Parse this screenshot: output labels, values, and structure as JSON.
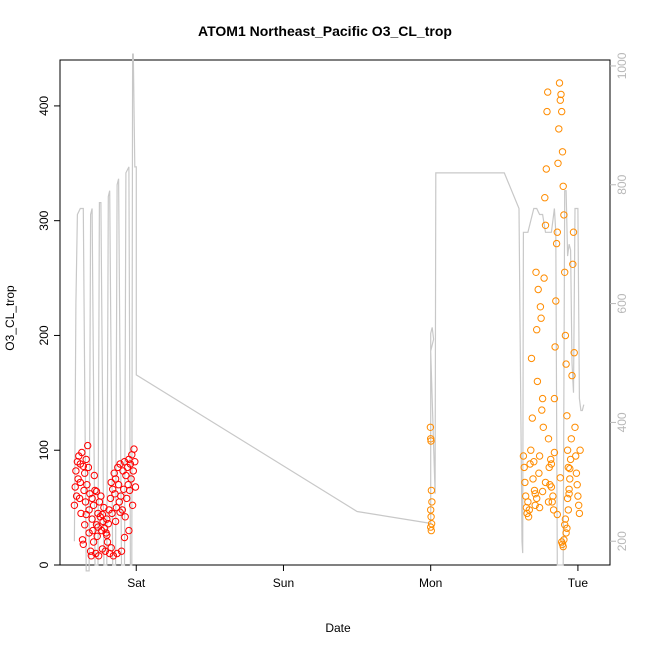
{
  "chart_data": {
    "type": "scatter",
    "title": "ATOM1 Northeast_Pacific O3_CL_trop",
    "xlabel": "Date",
    "ylabel": "O3_CL_trop",
    "x_ticks": [
      "Sat",
      "Sun",
      "Mon",
      "Tue"
    ],
    "x_tick_values": [
      1.0,
      2.0,
      3.0,
      4.0
    ],
    "x_unit": "days",
    "xlim": [
      0.55,
      4.15
    ],
    "ylim": [
      0,
      440
    ],
    "y_ticks": [
      0,
      100,
      200,
      300,
      400
    ],
    "y2_ticks": [
      200,
      400,
      600,
      800,
      1000
    ],
    "y2lim": [
      1010,
      160
    ],
    "series": [
      {
        "color": "#ff0000",
        "points": [
          [
            0.58,
            52
          ],
          [
            0.585,
            68
          ],
          [
            0.59,
            82
          ],
          [
            0.595,
            60
          ],
          [
            0.6,
            90
          ],
          [
            0.605,
            75
          ],
          [
            0.61,
            95
          ],
          [
            0.615,
            58
          ],
          [
            0.62,
            88
          ],
          [
            0.625,
            45
          ],
          [
            0.63,
            98
          ],
          [
            0.635,
            22
          ],
          [
            0.64,
            18
          ],
          [
            0.645,
            65
          ],
          [
            0.65,
            80
          ],
          [
            0.655,
            55
          ],
          [
            0.66,
            92
          ],
          [
            0.665,
            70
          ],
          [
            0.67,
            104
          ],
          [
            0.675,
            85
          ],
          [
            0.68,
            48
          ],
          [
            0.685,
            62
          ],
          [
            0.69,
            12
          ],
          [
            0.695,
            8
          ],
          [
            0.7,
            40
          ],
          [
            0.705,
            30
          ],
          [
            0.71,
            52
          ],
          [
            0.715,
            78
          ],
          [
            0.72,
            65
          ],
          [
            0.725,
            10
          ],
          [
            0.73,
            35
          ],
          [
            0.735,
            25
          ],
          [
            0.74,
            45
          ],
          [
            0.745,
            8
          ],
          [
            0.75,
            55
          ],
          [
            0.755,
            42
          ],
          [
            0.76,
            60
          ],
          [
            0.765,
            30
          ],
          [
            0.77,
            14
          ],
          [
            0.775,
            38
          ],
          [
            0.78,
            50
          ],
          [
            0.785,
            32
          ],
          [
            0.79,
            12
          ],
          [
            0.795,
            28
          ],
          [
            0.8,
            40
          ],
          [
            0.805,
            20
          ],
          [
            0.81,
            36
          ],
          [
            0.815,
            48
          ],
          [
            0.82,
            10
          ],
          [
            0.825,
            58
          ],
          [
            0.83,
            72
          ],
          [
            0.835,
            45
          ],
          [
            0.84,
            66
          ],
          [
            0.845,
            8
          ],
          [
            0.85,
            80
          ],
          [
            0.855,
            62
          ],
          [
            0.86,
            75
          ],
          [
            0.865,
            50
          ],
          [
            0.87,
            10
          ],
          [
            0.875,
            85
          ],
          [
            0.88,
            70
          ],
          [
            0.885,
            55
          ],
          [
            0.89,
            88
          ],
          [
            0.895,
            60
          ],
          [
            0.9,
            12
          ],
          [
            0.905,
            48
          ],
          [
            0.91,
            82
          ],
          [
            0.915,
            66
          ],
          [
            0.92,
            90
          ],
          [
            0.925,
            42
          ],
          [
            0.93,
            78
          ],
          [
            0.935,
            58
          ],
          [
            0.94,
            85
          ],
          [
            0.945,
            70
          ],
          [
            0.95,
            92
          ],
          [
            0.955,
            65
          ],
          [
            0.96,
            88
          ],
          [
            0.965,
            75
          ],
          [
            0.97,
            96
          ],
          [
            0.975,
            52
          ],
          [
            0.98,
            82
          ],
          [
            0.985,
            101
          ],
          [
            0.99,
            90
          ],
          [
            0.995,
            68
          ],
          [
            0.65,
            35
          ],
          [
            0.68,
            28
          ],
          [
            0.71,
            20
          ],
          [
            0.74,
            33
          ],
          [
            0.77,
            44
          ],
          [
            0.8,
            26
          ],
          [
            0.83,
            15
          ],
          [
            0.86,
            38
          ],
          [
            0.89,
            46
          ],
          [
            0.92,
            24
          ],
          [
            0.95,
            30
          ],
          [
            0.62,
            72
          ],
          [
            0.64,
            86
          ],
          [
            0.66,
            44
          ],
          [
            0.7,
            58
          ],
          [
            0.73,
            64
          ]
        ]
      },
      {
        "color": "#ff8c00",
        "points": [
          [
            2.998,
            120
          ],
          [
            3.0,
            110
          ],
          [
            3.002,
            108
          ],
          [
            3.005,
            65
          ],
          [
            3.008,
            55
          ],
          [
            3.0,
            48
          ],
          [
            3.003,
            42
          ],
          [
            3.006,
            36
          ],
          [
            3.0,
            33
          ],
          [
            3.004,
            30
          ],
          [
            3.63,
            95
          ],
          [
            3.635,
            85
          ],
          [
            3.64,
            72
          ],
          [
            3.645,
            60
          ],
          [
            3.65,
            50
          ],
          [
            3.655,
            45
          ],
          [
            3.66,
            55
          ],
          [
            3.665,
            42
          ],
          [
            3.67,
            48
          ],
          [
            3.675,
            88
          ],
          [
            3.68,
            100
          ],
          [
            3.685,
            180
          ],
          [
            3.69,
            128
          ],
          [
            3.695,
            75
          ],
          [
            3.7,
            90
          ],
          [
            3.705,
            65
          ],
          [
            3.71,
            52
          ],
          [
            3.715,
            255
          ],
          [
            3.72,
            205
          ],
          [
            3.725,
            160
          ],
          [
            3.73,
            240
          ],
          [
            3.735,
            80
          ],
          [
            3.74,
            95
          ],
          [
            3.745,
            225
          ],
          [
            3.75,
            215
          ],
          [
            3.755,
            135
          ],
          [
            3.76,
            145
          ],
          [
            3.765,
            120
          ],
          [
            3.77,
            250
          ],
          [
            3.775,
            320
          ],
          [
            3.78,
            296
          ],
          [
            3.785,
            345
          ],
          [
            3.79,
            395
          ],
          [
            3.795,
            412
          ],
          [
            3.8,
            110
          ],
          [
            3.805,
            85
          ],
          [
            3.81,
            70
          ],
          [
            3.815,
            92
          ],
          [
            3.82,
            68
          ],
          [
            3.825,
            55
          ],
          [
            3.83,
            60
          ],
          [
            3.835,
            48
          ],
          [
            3.84,
            145
          ],
          [
            3.845,
            190
          ],
          [
            3.85,
            230
          ],
          [
            3.855,
            280
          ],
          [
            3.86,
            290
          ],
          [
            3.865,
            350
          ],
          [
            3.87,
            380
          ],
          [
            3.875,
            420
          ],
          [
            3.88,
            405
          ],
          [
            3.885,
            410
          ],
          [
            3.89,
            395
          ],
          [
            3.895,
            360
          ],
          [
            3.9,
            330
          ],
          [
            3.905,
            305
          ],
          [
            3.91,
            255
          ],
          [
            3.915,
            200
          ],
          [
            3.92,
            175
          ],
          [
            3.925,
            130
          ],
          [
            3.93,
            100
          ],
          [
            3.935,
            85
          ],
          [
            3.94,
            62
          ],
          [
            3.945,
            75
          ],
          [
            3.95,
            92
          ],
          [
            3.955,
            110
          ],
          [
            3.96,
            165
          ],
          [
            3.965,
            262
          ],
          [
            3.97,
            290
          ],
          [
            3.975,
            185
          ],
          [
            3.98,
            120
          ],
          [
            3.985,
            95
          ],
          [
            3.99,
            80
          ],
          [
            3.995,
            70
          ],
          [
            4.0,
            60
          ],
          [
            4.005,
            52
          ],
          [
            4.01,
            45
          ],
          [
            4.015,
            100
          ],
          [
            3.89,
            20
          ],
          [
            3.895,
            18
          ],
          [
            3.9,
            16
          ],
          [
            3.905,
            22
          ],
          [
            3.91,
            35
          ],
          [
            3.915,
            40
          ],
          [
            3.92,
            28
          ],
          [
            3.925,
            32
          ],
          [
            3.93,
            58
          ],
          [
            3.935,
            48
          ],
          [
            3.94,
            66
          ],
          [
            3.945,
            84
          ],
          [
            3.71,
            62
          ],
          [
            3.72,
            58
          ],
          [
            3.74,
            50
          ],
          [
            3.76,
            64
          ],
          [
            3.78,
            72
          ],
          [
            3.8,
            55
          ],
          [
            3.82,
            88
          ],
          [
            3.84,
            98
          ],
          [
            3.86,
            44
          ],
          [
            3.88,
            76
          ]
        ]
      }
    ],
    "altitude_line": {
      "color": "#c8c8c8",
      "points": [
        [
          0.58,
          200
        ],
        [
          0.59,
          600
        ],
        [
          0.6,
          750
        ],
        [
          0.62,
          760
        ],
        [
          0.64,
          760
        ],
        [
          0.66,
          150
        ],
        [
          0.68,
          150
        ],
        [
          0.69,
          750
        ],
        [
          0.7,
          760
        ],
        [
          0.72,
          160
        ],
        [
          0.74,
          160
        ],
        [
          0.75,
          770
        ],
        [
          0.76,
          770
        ],
        [
          0.78,
          160
        ],
        [
          0.8,
          160
        ],
        [
          0.81,
          780
        ],
        [
          0.82,
          790
        ],
        [
          0.84,
          160
        ],
        [
          0.86,
          160
        ],
        [
          0.87,
          800
        ],
        [
          0.88,
          810
        ],
        [
          0.9,
          160
        ],
        [
          0.92,
          160
        ],
        [
          0.93,
          820
        ],
        [
          0.95,
          830
        ],
        [
          0.96,
          160
        ],
        [
          0.97,
          160
        ],
        [
          0.975,
          1020
        ],
        [
          0.98,
          1020
        ],
        [
          0.99,
          830
        ],
        [
          1.0,
          830
        ],
        [
          1.0,
          480
        ],
        [
          2.5,
          250
        ],
        [
          3.0,
          230
        ],
        [
          3.0,
          550
        ],
        [
          3.01,
          560
        ],
        [
          3.02,
          540
        ],
        [
          3.0,
          520
        ],
        [
          3.03,
          280
        ],
        [
          3.035,
          820
        ],
        [
          3.5,
          820
        ],
        [
          3.6,
          760
        ],
        [
          3.62,
          200
        ],
        [
          3.625,
          180
        ],
        [
          3.63,
          720
        ],
        [
          3.65,
          720
        ],
        [
          3.66,
          720
        ],
        [
          3.7,
          760
        ],
        [
          3.72,
          760
        ],
        [
          3.74,
          750
        ],
        [
          3.76,
          750
        ],
        [
          3.78,
          720
        ],
        [
          3.8,
          720
        ],
        [
          3.82,
          720
        ],
        [
          3.84,
          760
        ],
        [
          3.85,
          720
        ],
        [
          3.86,
          160
        ],
        [
          3.87,
          160
        ],
        [
          3.88,
          160
        ],
        [
          3.89,
          160
        ],
        [
          3.9,
          160
        ],
        [
          3.91,
          790
        ],
        [
          3.92,
          790
        ],
        [
          3.93,
          680
        ],
        [
          3.94,
          700
        ],
        [
          3.95,
          690
        ],
        [
          3.96,
          500
        ],
        [
          3.97,
          450
        ],
        [
          3.98,
          760
        ],
        [
          4.0,
          760
        ],
        [
          4.01,
          440
        ],
        [
          4.02,
          420
        ],
        [
          4.03,
          420
        ],
        [
          4.04,
          430
        ]
      ]
    }
  }
}
